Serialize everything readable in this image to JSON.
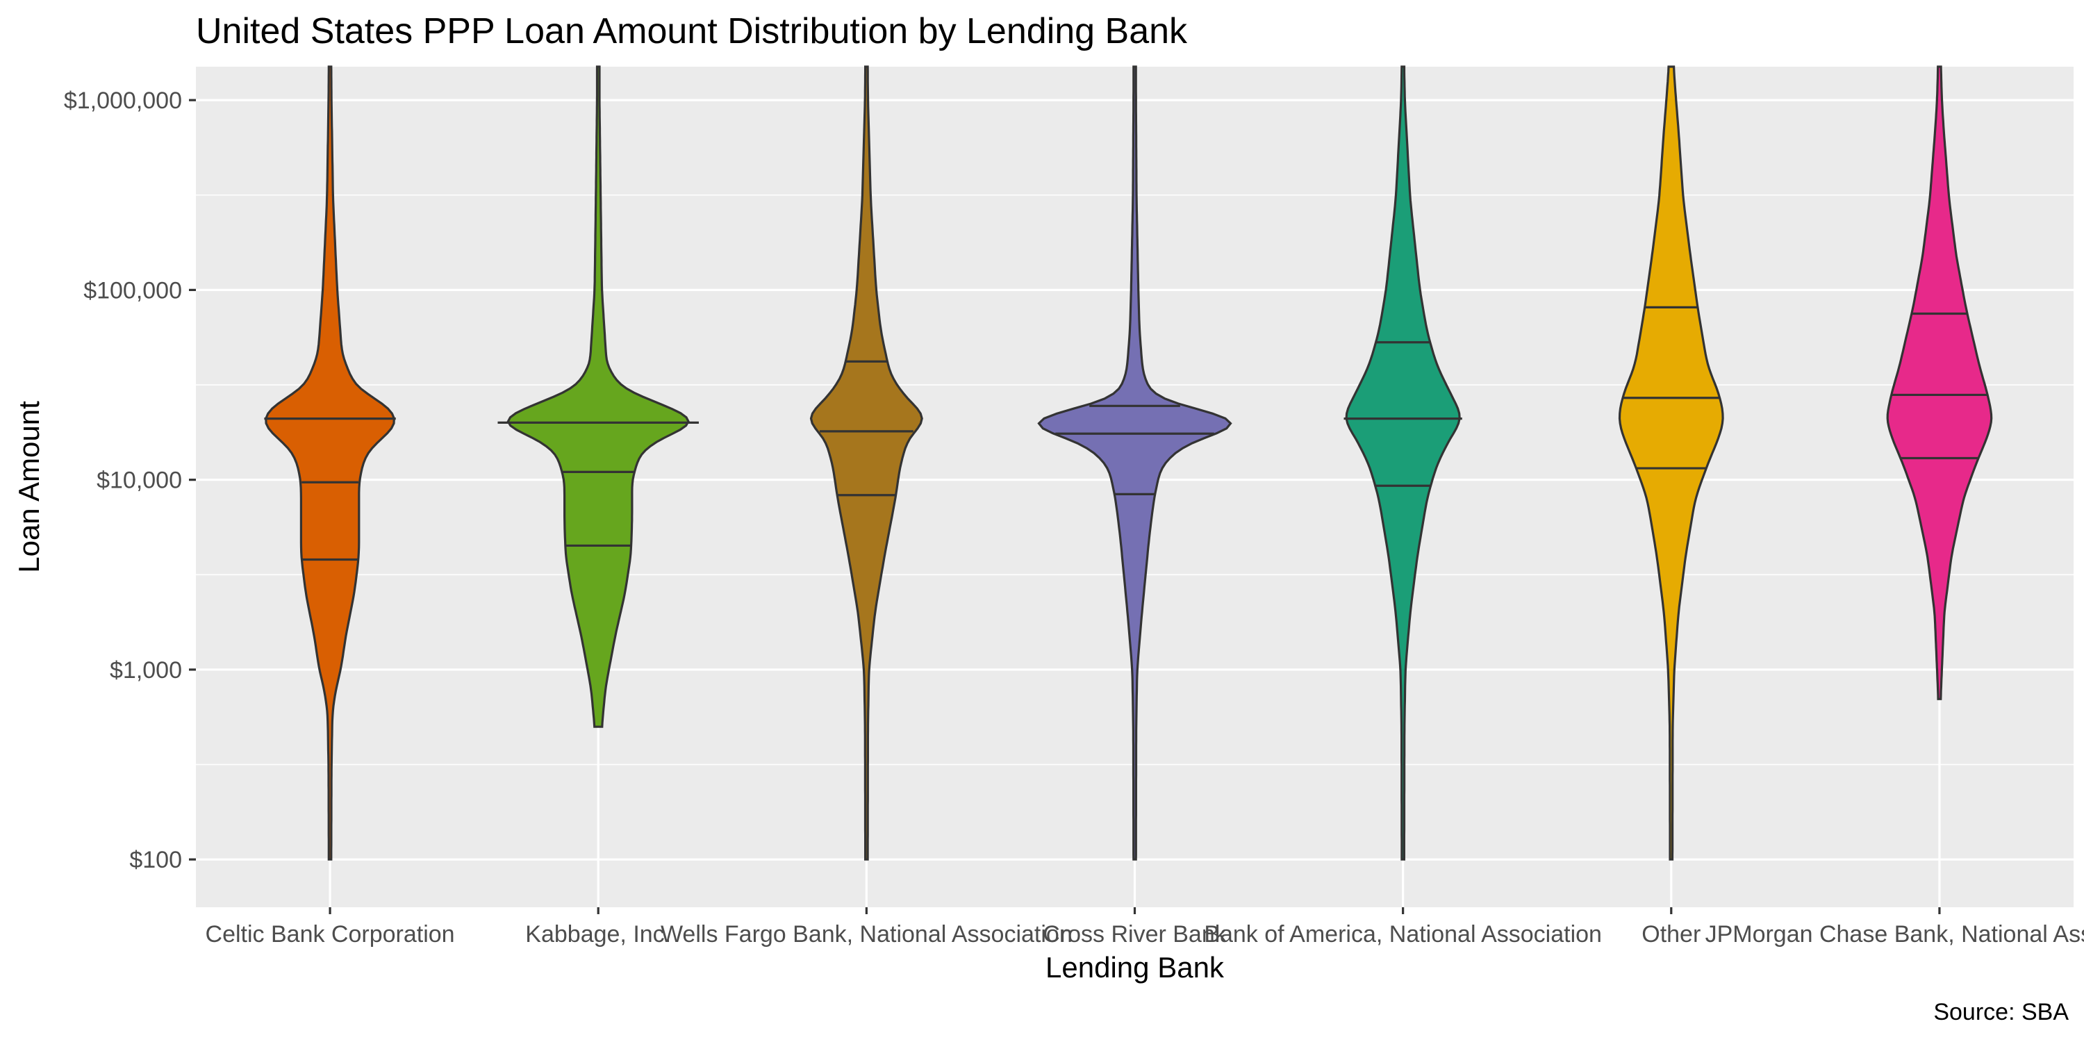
{
  "chart_data": {
    "type": "violin",
    "title": "United States PPP Loan Amount Distribution by Lending Bank",
    "xlabel": "Lending Bank",
    "ylabel": "Loan Amount",
    "caption": "Source: SBA",
    "y_scale": "log10",
    "ylim": [
      56,
      1500000
    ],
    "y_ticks": [
      100,
      1000,
      10000,
      100000,
      1000000
    ],
    "y_tick_labels": [
      "$100",
      "$1,000",
      "$10,000",
      "$100,000",
      "$1,000,000"
    ],
    "grid": true,
    "legend": "none",
    "categories": [
      "Celtic Bank Corporation",
      "Kabbage, Inc.",
      "Wells Fargo Bank, National Association",
      "Cross River Bank",
      "Bank of America, National Association",
      "Other",
      "JPMorgan Chase Bank, National Association"
    ],
    "series": [
      {
        "category": "Celtic Bank Corporation",
        "color": "#D95F02",
        "min": 100,
        "max": 1500000,
        "quartiles": [
          3800,
          9700,
          21000
        ],
        "density": [
          [
            100,
            0.01
          ],
          [
            300,
            0.012
          ],
          [
            600,
            0.02
          ],
          [
            800,
            0.05
          ],
          [
            1000,
            0.09
          ],
          [
            1500,
            0.13
          ],
          [
            2500,
            0.2
          ],
          [
            4000,
            0.24
          ],
          [
            6000,
            0.24
          ],
          [
            10000,
            0.24
          ],
          [
            14000,
            0.3
          ],
          [
            20000,
            0.58
          ],
          [
            25000,
            0.47
          ],
          [
            30000,
            0.22
          ],
          [
            45000,
            0.1
          ],
          [
            100000,
            0.06
          ],
          [
            300000,
            0.025
          ],
          [
            1000000,
            0.012
          ],
          [
            1500000,
            0.01
          ]
        ]
      },
      {
        "category": "Kabbage, Inc.",
        "color": "#66A61E",
        "min": 500,
        "max": 1500000,
        "quartiles": [
          4500,
          11000,
          20000
        ],
        "density": [
          [
            500,
            0.03
          ],
          [
            800,
            0.06
          ],
          [
            1500,
            0.14
          ],
          [
            2500,
            0.22
          ],
          [
            4000,
            0.27
          ],
          [
            6000,
            0.28
          ],
          [
            10000,
            0.28
          ],
          [
            14000,
            0.35
          ],
          [
            17000,
            0.55
          ],
          [
            20000,
            0.85
          ],
          [
            24000,
            0.6
          ],
          [
            30000,
            0.2
          ],
          [
            40000,
            0.07
          ],
          [
            100000,
            0.03
          ],
          [
            300000,
            0.02
          ],
          [
            1000000,
            0.01
          ],
          [
            1500000,
            0.01
          ]
        ]
      },
      {
        "category": "Wells Fargo Bank, National Association",
        "color": "#A6761D",
        "min": 100,
        "max": 1500000,
        "quartiles": [
          8300,
          18000,
          42000
        ],
        "density": [
          [
            100,
            0.01
          ],
          [
            500,
            0.012
          ],
          [
            1000,
            0.02
          ],
          [
            2000,
            0.07
          ],
          [
            4000,
            0.15
          ],
          [
            8000,
            0.24
          ],
          [
            12000,
            0.28
          ],
          [
            17000,
            0.35
          ],
          [
            21000,
            0.52
          ],
          [
            26000,
            0.35
          ],
          [
            35000,
            0.2
          ],
          [
            60000,
            0.12
          ],
          [
            100000,
            0.08
          ],
          [
            300000,
            0.035
          ],
          [
            1000000,
            0.012
          ],
          [
            1500000,
            0.01
          ]
        ]
      },
      {
        "category": "Cross River Bank",
        "color": "#7570B3",
        "min": 100,
        "max": 1500000,
        "quartiles": [
          8400,
          17500,
          24500
        ],
        "density": [
          [
            100,
            0.01
          ],
          [
            500,
            0.012
          ],
          [
            1000,
            0.02
          ],
          [
            2000,
            0.06
          ],
          [
            5000,
            0.12
          ],
          [
            8000,
            0.16
          ],
          [
            12000,
            0.22
          ],
          [
            16000,
            0.45
          ],
          [
            20000,
            1.0
          ],
          [
            23000,
            0.6
          ],
          [
            26000,
            0.18
          ],
          [
            35000,
            0.07
          ],
          [
            60000,
            0.04
          ],
          [
            100000,
            0.03
          ],
          [
            300000,
            0.015
          ],
          [
            1000000,
            0.01
          ],
          [
            1500000,
            0.01
          ]
        ]
      },
      {
        "category": "Bank of America, National Association",
        "color": "#1B9E77",
        "min": 100,
        "max": 1500000,
        "quartiles": [
          9300,
          21000,
          53000
        ],
        "density": [
          [
            100,
            0.01
          ],
          [
            500,
            0.012
          ],
          [
            1000,
            0.02
          ],
          [
            2000,
            0.06
          ],
          [
            4000,
            0.12
          ],
          [
            8000,
            0.2
          ],
          [
            12000,
            0.28
          ],
          [
            17000,
            0.4
          ],
          [
            21000,
            0.5
          ],
          [
            28000,
            0.4
          ],
          [
            40000,
            0.28
          ],
          [
            60000,
            0.2
          ],
          [
            100000,
            0.14
          ],
          [
            300000,
            0.06
          ],
          [
            1000000,
            0.015
          ],
          [
            1500000,
            0.01
          ]
        ]
      },
      {
        "category": "Other",
        "color": "#E6AB02",
        "min": 100,
        "max": 1500000,
        "quartiles": [
          11500,
          27000,
          81000
        ],
        "density": [
          [
            100,
            0.01
          ],
          [
            500,
            0.012
          ],
          [
            1000,
            0.025
          ],
          [
            2000,
            0.06
          ],
          [
            4000,
            0.12
          ],
          [
            8000,
            0.2
          ],
          [
            12000,
            0.3
          ],
          [
            17000,
            0.4
          ],
          [
            21000,
            0.44
          ],
          [
            28000,
            0.4
          ],
          [
            40000,
            0.3
          ],
          [
            80000,
            0.22
          ],
          [
            150000,
            0.16
          ],
          [
            300000,
            0.1
          ],
          [
            700000,
            0.06
          ],
          [
            1000000,
            0.04
          ],
          [
            1500000,
            0.02
          ]
        ]
      },
      {
        "category": "JPMorgan Chase Bank, National Association",
        "color": "#E7298A",
        "min": 700,
        "max": 1500000,
        "quartiles": [
          13000,
          28000,
          75000
        ],
        "density": [
          [
            700,
            0.01
          ],
          [
            1000,
            0.02
          ],
          [
            2000,
            0.04
          ],
          [
            4000,
            0.1
          ],
          [
            8000,
            0.2
          ],
          [
            12000,
            0.3
          ],
          [
            17000,
            0.4
          ],
          [
            21000,
            0.44
          ],
          [
            28000,
            0.4
          ],
          [
            40000,
            0.33
          ],
          [
            80000,
            0.22
          ],
          [
            150000,
            0.14
          ],
          [
            300000,
            0.08
          ],
          [
            700000,
            0.035
          ],
          [
            1000000,
            0.02
          ],
          [
            1500000,
            0.012
          ]
        ]
      }
    ]
  }
}
